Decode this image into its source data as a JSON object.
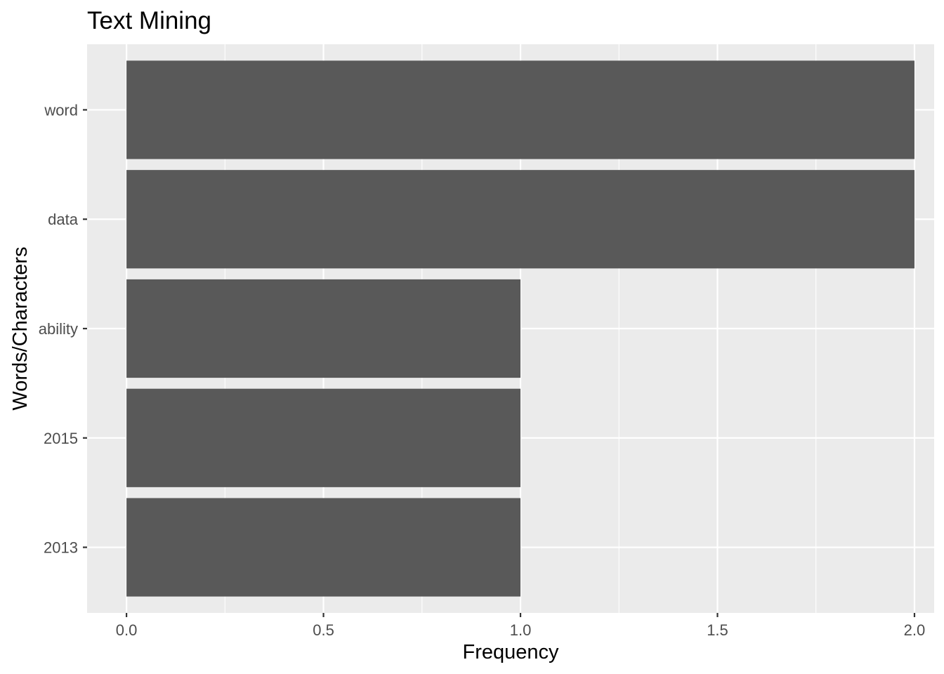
{
  "chart_data": {
    "type": "bar",
    "orientation": "horizontal",
    "title": "Text Mining",
    "xlabel": "Frequency",
    "ylabel": "Words/Characters",
    "categories": [
      "2013",
      "2015",
      "ability",
      "data",
      "word"
    ],
    "values": [
      1,
      1,
      1,
      2,
      2
    ],
    "xlim": [
      -0.1,
      2.05
    ],
    "xticks": [
      "0.0",
      "0.5",
      "1.0",
      "1.5",
      "2.0"
    ],
    "grid": true,
    "legend": "none",
    "colors": {
      "bar": "#595959",
      "panel": "#ebebeb",
      "grid": "#ffffff",
      "tick_text": "#4d4d4d"
    }
  }
}
